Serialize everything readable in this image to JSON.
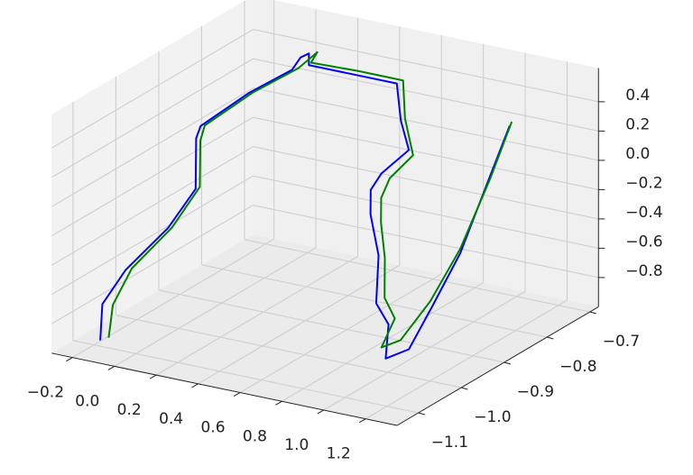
{
  "chart_data": {
    "type": "line3d",
    "title": "",
    "xlabel": "",
    "ylabel": "",
    "zlabel": "",
    "xlim": [
      -0.3,
      1.35
    ],
    "ylim": [
      -1.15,
      -0.68
    ],
    "zlim": [
      -1.0,
      0.63
    ],
    "xticks": [
      -0.2,
      0.0,
      0.2,
      0.4,
      0.6,
      0.8,
      1.0,
      1.2
    ],
    "xtick_labels": [
      "−0.2",
      "0.0",
      "0.2",
      "0.4",
      "0.6",
      "0.8",
      "1.0",
      "1.2"
    ],
    "yticks": [
      -1.1,
      -1.0,
      -0.9,
      -0.8,
      -0.7
    ],
    "ytick_labels": [
      "−1.1",
      "−1.0",
      "−0.9",
      "−0.8",
      "−0.7"
    ],
    "zticks": [
      -0.8,
      -0.6,
      -0.4,
      -0.2,
      0.0,
      0.2,
      0.4
    ],
    "ztick_labels": [
      "−0.8",
      "−0.6",
      "−0.4",
      "−0.2",
      "0.0",
      "0.2",
      "0.4"
    ],
    "grid": true,
    "legend": "none",
    "series": [
      {
        "color": "#0000ff",
        "x": [
          -0.17,
          -0.16,
          -0.09,
          0.01,
          0.04,
          -0.06,
          -0.1,
          0.03,
          0.07,
          0.07,
          0.11,
          0.11,
          0.32,
          0.53,
          0.59,
          0.69,
          0.62,
          0.61,
          0.65,
          0.75,
          0.8,
          0.9,
          1.05,
          1.12,
          1.11,
          1.12,
          1.11,
          1.11
        ],
        "y": [
          -1.1,
          -1.1,
          -1.08,
          -1.03,
          -0.98,
          -0.93,
          -0.9,
          -0.85,
          -0.77,
          -0.75,
          -0.75,
          -0.75,
          -0.75,
          -0.75,
          -0.77,
          -0.8,
          -0.83,
          -0.85,
          -0.87,
          -0.9,
          -0.93,
          -0.95,
          -1.03,
          -1.01,
          -0.95,
          -0.89,
          -0.82,
          -0.77
        ],
        "z": [
          -0.96,
          -0.71,
          -0.49,
          -0.26,
          -0.07,
          0.16,
          0.18,
          0.36,
          0.39,
          0.44,
          0.48,
          0.4,
          0.4,
          0.4,
          0.2,
          0.08,
          -0.05,
          -0.13,
          -0.25,
          -0.45,
          -0.71,
          -0.79,
          -0.84,
          -0.79,
          -0.6,
          -0.34,
          0.03,
          0.32
        ]
      },
      {
        "color": "#008000",
        "x": [
          -0.13,
          -0.12,
          -0.11,
          -0.06,
          0.03,
          0.06,
          -0.04,
          -0.08,
          0.05,
          0.1,
          0.13,
          0.15,
          0.12,
          0.34,
          0.56,
          0.61,
          0.71,
          0.66,
          0.66,
          0.7,
          0.78,
          0.84,
          0.93,
          1.03,
          1.08,
          1.1,
          1.12,
          1.12,
          1.12
        ],
        "y": [
          -1.1,
          -1.1,
          -1.1,
          -1.08,
          -1.03,
          -0.98,
          -0.93,
          -0.9,
          -0.85,
          -0.77,
          -0.75,
          -0.75,
          -0.75,
          -0.75,
          -0.75,
          -0.77,
          -0.8,
          -0.83,
          -0.85,
          -0.87,
          -0.9,
          -0.93,
          -0.95,
          -1.03,
          -1.01,
          -0.95,
          -0.89,
          -0.82,
          -0.77
        ],
        "z": [
          -0.93,
          -0.82,
          -0.7,
          -0.47,
          -0.25,
          -0.05,
          0.15,
          0.19,
          0.37,
          0.41,
          0.47,
          0.5,
          0.42,
          0.43,
          0.43,
          0.22,
          0.05,
          -0.07,
          -0.17,
          -0.29,
          -0.46,
          -0.66,
          -0.74,
          -0.77,
          -0.74,
          -0.57,
          -0.31,
          0.05,
          0.35
        ]
      }
    ]
  }
}
